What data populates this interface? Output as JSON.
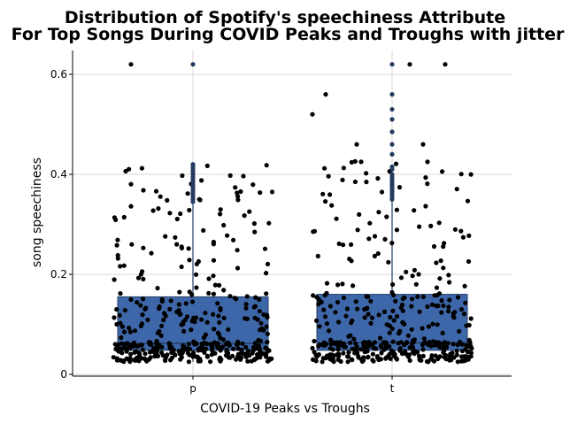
{
  "chart_data": {
    "type": "boxplot-jitter",
    "title_line1": "Distribution of Spotify's speechiness Attribute",
    "title_line2": "For Top Songs During COVID Peaks and Troughs with jitter",
    "xlabel": "COVID-19 Peaks vs Troughs",
    "ylabel": "song speechiness",
    "categories": [
      "p",
      "t"
    ],
    "ylim": [
      -0.005,
      0.65
    ],
    "yticks": [
      0,
      0.2,
      0.4,
      0.6
    ],
    "ytick_labels": [
      "0",
      "0.2",
      "0.4",
      "0.6"
    ],
    "grid": true,
    "box_color": "#3e67a9",
    "box_outline_color": "#223d66",
    "point_color": "#000000",
    "outlier_color": "#253a5e",
    "boxes": [
      {
        "category": "p",
        "min": 0.025,
        "q1": 0.048,
        "median": 0.062,
        "q3": 0.155,
        "whisker_high": 0.34
      },
      {
        "category": "t",
        "min": 0.025,
        "q1": 0.048,
        "median": 0.063,
        "q3": 0.16,
        "whisker_high": 0.345
      }
    ],
    "outliers": [
      {
        "category": "p",
        "values": [
          0.345,
          0.35,
          0.355,
          0.36,
          0.365,
          0.37,
          0.375,
          0.38,
          0.385,
          0.39,
          0.395,
          0.4,
          0.405,
          0.41,
          0.415,
          0.42,
          0.62
        ]
      },
      {
        "category": "t",
        "values": [
          0.35,
          0.355,
          0.36,
          0.365,
          0.37,
          0.375,
          0.38,
          0.385,
          0.39,
          0.395,
          0.4,
          0.41,
          0.415,
          0.44,
          0.46,
          0.485,
          0.51,
          0.53,
          0.56,
          0.62
        ]
      }
    ],
    "jitter_points": [
      {
        "category": "p",
        "n": 420
      },
      {
        "category": "t",
        "n": 420
      }
    ]
  }
}
